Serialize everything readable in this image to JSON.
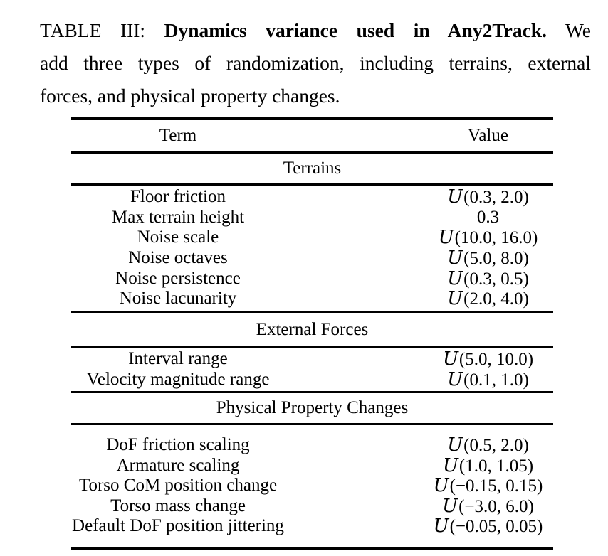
{
  "caption": {
    "line1_prefix": "TABLE III: ",
    "line1_bold": "Dynamics variance used in Any2Track.",
    "line1_suffix": " We",
    "line2": "add three types of randomization, including terrains, external",
    "line3": "forces, and physical property changes."
  },
  "table": {
    "columns": {
      "term": "Term",
      "value": "Value"
    },
    "sections": [
      {
        "title": "Terrains",
        "rows": [
          [
            "Floor friction",
            "𝒰(0.3, 2.0)"
          ],
          [
            "Max terrain height",
            "0.3"
          ],
          [
            "Noise scale",
            "𝒰(10.0, 16.0)"
          ],
          [
            "Noise octaves",
            "𝒰(5.0, 8.0)"
          ],
          [
            "Noise persistence",
            "𝒰(0.3, 0.5)"
          ],
          [
            "Noise lacunarity",
            "𝒰(2.0, 4.0)"
          ]
        ]
      },
      {
        "title": "External Forces",
        "rows": [
          [
            "Interval range",
            "𝒰(5.0, 10.0)"
          ],
          [
            "Velocity magnitude range",
            "𝒰(0.1, 1.0)"
          ]
        ]
      },
      {
        "title": "Physical Property Changes",
        "rows": [
          [
            "DoF friction scaling",
            "𝒰(0.5, 2.0)"
          ],
          [
            "Armature scaling",
            "𝒰(1.0, 1.05)"
          ],
          [
            "Torso CoM position change",
            "𝒰(−0.15, 0.15)"
          ],
          [
            "Torso mass change",
            "𝒰(−3.0, 6.0)"
          ],
          [
            "Default DoF position jittering",
            "𝒰(−0.05, 0.05)"
          ]
        ]
      }
    ],
    "colors": {
      "text": "#000000",
      "rule": "#000000",
      "background": "#ffffff"
    }
  }
}
